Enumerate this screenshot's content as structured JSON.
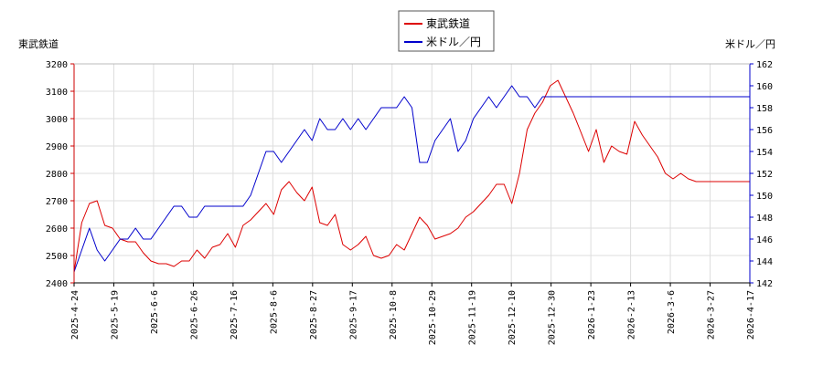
{
  "chart_data": {
    "type": "line",
    "legend_position": "top-center",
    "grid": true,
    "left_axis_label": "東武鉄道",
    "right_axis_label": "米ドル／円",
    "x_tick_labels": [
      "2025-4-24",
      "2025-5-19",
      "2025-6-6",
      "2025-6-26",
      "2025-7-16",
      "2025-8-6",
      "2025-8-27",
      "2025-9-17",
      "2025-10-8",
      "2025-10-29",
      "2025-11-19",
      "2025-12-10",
      "2025-12-30",
      "2026-1-23",
      "2026-2-13",
      "2026-3-6",
      "2026-3-27",
      "2026-4-17"
    ],
    "left_ylim": [
      2400,
      3200
    ],
    "left_yticks": [
      2400,
      2500,
      2600,
      2700,
      2800,
      2900,
      3000,
      3100,
      3200
    ],
    "right_ylim": [
      142,
      162
    ],
    "right_yticks": [
      142,
      144,
      146,
      148,
      150,
      152,
      154,
      156,
      158,
      160,
      162
    ],
    "series": [
      {
        "name": "東武鉄道",
        "axis": "left",
        "color": "#dd0000",
        "x_index": [
          0,
          4,
          8,
          12,
          16,
          20,
          24,
          28,
          32,
          36,
          40,
          44,
          48,
          52,
          56,
          60,
          64,
          68,
          72,
          76,
          80,
          84,
          88,
          92,
          96,
          100,
          104,
          108,
          112,
          116,
          120,
          124,
          128,
          132,
          136,
          140,
          144,
          148,
          152,
          156,
          160,
          164,
          168,
          172,
          176,
          180,
          184,
          188,
          192,
          196,
          200,
          204,
          208,
          212,
          216,
          220,
          224,
          228,
          232,
          236,
          240,
          244,
          248,
          252,
          256,
          260,
          264,
          268,
          272,
          276,
          280,
          284,
          288,
          292,
          296,
          300,
          304,
          308,
          312,
          316,
          320,
          324,
          328,
          332,
          336,
          340,
          344,
          348,
          352
        ],
        "values": [
          2440,
          2620,
          2690,
          2700,
          2610,
          2600,
          2560,
          2550,
          2550,
          2510,
          2480,
          2470,
          2470,
          2460,
          2480,
          2480,
          2520,
          2490,
          2530,
          2540,
          2580,
          2530,
          2610,
          2630,
          2660,
          2690,
          2650,
          2740,
          2770,
          2730,
          2700,
          2750,
          2620,
          2610,
          2650,
          2540,
          2520,
          2540,
          2570,
          2500,
          2490,
          2500,
          2540,
          2520,
          2580,
          2640,
          2610,
          2560,
          2570,
          2580,
          2600,
          2640,
          2660,
          2690,
          2720,
          2760,
          2760,
          2690,
          2800,
          2960,
          3020,
          3060,
          3120,
          3140,
          3080,
          3020,
          2950,
          2880,
          2960,
          2840,
          2900,
          2880,
          2870,
          2990,
          2940,
          2900,
          2860,
          2800,
          2780,
          2800,
          2780,
          2770,
          2770,
          2770,
          2770,
          2770,
          2770,
          2770,
          2770
        ]
      },
      {
        "name": "米ドル／円",
        "axis": "right",
        "color": "#0000cc",
        "x_index": [
          0,
          4,
          8,
          12,
          16,
          20,
          24,
          28,
          32,
          36,
          40,
          44,
          48,
          52,
          56,
          60,
          64,
          68,
          72,
          76,
          80,
          84,
          88,
          92,
          96,
          100,
          104,
          108,
          112,
          116,
          120,
          124,
          128,
          132,
          136,
          140,
          144,
          148,
          152,
          156,
          160,
          164,
          168,
          172,
          176,
          180,
          184,
          188,
          192,
          196,
          200,
          204,
          208,
          212,
          216,
          220,
          224,
          228,
          232,
          236,
          240,
          244,
          248,
          252,
          256,
          260,
          264,
          268,
          272,
          276,
          280,
          284,
          288,
          292,
          296,
          300,
          304,
          308,
          312,
          316,
          320,
          324,
          328,
          332,
          336,
          340,
          344,
          348,
          352
        ],
        "values": [
          143,
          145,
          147,
          145,
          144,
          145,
          146,
          146,
          147,
          146,
          146,
          147,
          148,
          149,
          149,
          148,
          148,
          149,
          149,
          149,
          149,
          149,
          149,
          150,
          152,
          154,
          154,
          153,
          154,
          155,
          156,
          155,
          157,
          156,
          156,
          157,
          156,
          157,
          156,
          157,
          158,
          158,
          158,
          159,
          158,
          153,
          153,
          155,
          156,
          157,
          154,
          155,
          157,
          158,
          159,
          158,
          159,
          160,
          159,
          159,
          158,
          159,
          159,
          159,
          159,
          159,
          159,
          159,
          159,
          159,
          159,
          159,
          159,
          159,
          159,
          159,
          159,
          159,
          159,
          159,
          159,
          159,
          159,
          159,
          159,
          159,
          159,
          159,
          159
        ]
      }
    ]
  }
}
